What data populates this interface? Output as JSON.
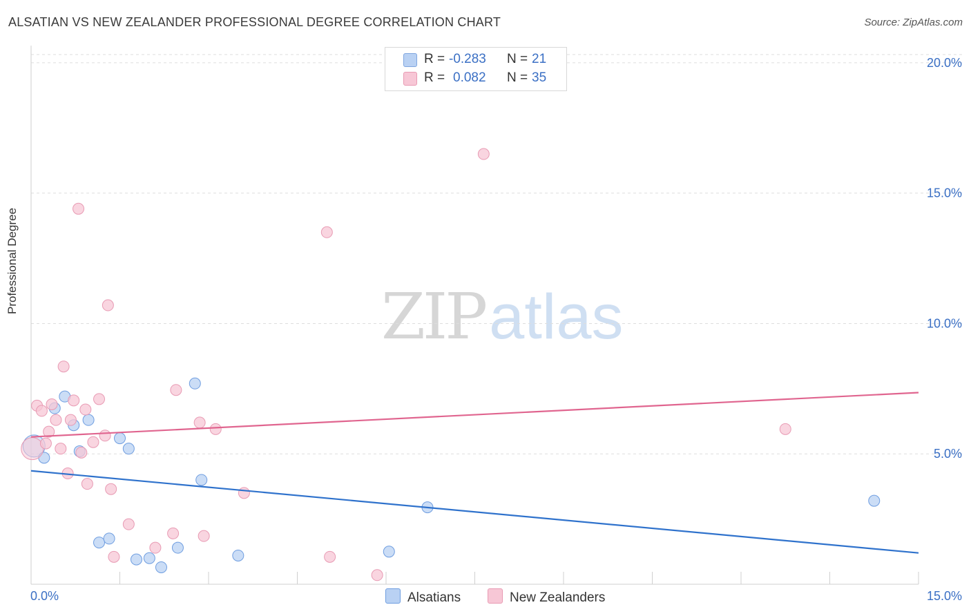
{
  "title": "ALSATIAN VS NEW ZEALANDER PROFESSIONAL DEGREE CORRELATION CHART",
  "source": "Source: ZipAtlas.com",
  "watermark": {
    "zip": "ZIP",
    "atlas": "atlas"
  },
  "legend": {
    "rows": [
      {
        "r_label": "R =",
        "r_value": "-0.283",
        "n_label": "N =",
        "n_value": "21",
        "fill": "#b9d1f3",
        "stroke": "#7ea5df"
      },
      {
        "r_label": "R =",
        "r_value": "0.082",
        "n_label": "N =",
        "n_value": "35",
        "fill": "#f7c7d6",
        "stroke": "#e89ab3"
      }
    ]
  },
  "chart_data": {
    "type": "scatter",
    "title": "ALSATIAN VS NEW ZEALANDER PROFESSIONAL DEGREE CORRELATION CHART",
    "xlabel": "",
    "ylabel": "Professional Degree",
    "xlim": [
      0,
      15
    ],
    "ylim": [
      0,
      20.5
    ],
    "x_tick_labels": [
      "0.0%",
      "15.0%"
    ],
    "y_ticks": [
      5,
      10,
      15,
      20
    ],
    "y_tick_labels": [
      "5.0%",
      "10.0%",
      "15.0%",
      "20.0%"
    ],
    "grid": true,
    "legend_position": "bottom-center",
    "series": [
      {
        "name": "Alsatians",
        "color": "#6e9de0",
        "fill": "#b9d1f3",
        "trend_color": "#2f72cc",
        "trend": {
          "x": [
            0,
            15
          ],
          "y": [
            4.35,
            1.2
          ]
        },
        "points": [
          {
            "x": 0.05,
            "y": 5.3,
            "big": true
          },
          {
            "x": 0.22,
            "y": 4.85
          },
          {
            "x": 0.4,
            "y": 6.75
          },
          {
            "x": 0.57,
            "y": 7.2
          },
          {
            "x": 0.72,
            "y": 6.1
          },
          {
            "x": 0.82,
            "y": 5.1
          },
          {
            "x": 0.97,
            "y": 6.3
          },
          {
            "x": 1.15,
            "y": 1.6
          },
          {
            "x": 1.32,
            "y": 1.75
          },
          {
            "x": 1.5,
            "y": 5.6
          },
          {
            "x": 1.65,
            "y": 5.2
          },
          {
            "x": 1.78,
            "y": 0.95
          },
          {
            "x": 2.0,
            "y": 1.0
          },
          {
            "x": 2.2,
            "y": 0.65
          },
          {
            "x": 2.48,
            "y": 1.4
          },
          {
            "x": 2.77,
            "y": 7.7
          },
          {
            "x": 2.88,
            "y": 4.0
          },
          {
            "x": 3.5,
            "y": 1.1
          },
          {
            "x": 6.05,
            "y": 1.25
          },
          {
            "x": 6.7,
            "y": 2.95
          },
          {
            "x": 14.25,
            "y": 3.2
          }
        ]
      },
      {
        "name": "New Zealanders",
        "color": "#e89ab3",
        "fill": "#f7c7d6",
        "trend_color": "#e0658f",
        "trend": {
          "x": [
            0,
            15
          ],
          "y": [
            5.65,
            7.35
          ]
        },
        "points": [
          {
            "x": 0.02,
            "y": 5.2,
            "big": true
          },
          {
            "x": 0.1,
            "y": 6.85
          },
          {
            "x": 0.18,
            "y": 6.65
          },
          {
            "x": 0.25,
            "y": 5.4
          },
          {
            "x": 0.3,
            "y": 5.85
          },
          {
            "x": 0.35,
            "y": 6.9
          },
          {
            "x": 0.42,
            "y": 6.3
          },
          {
            "x": 0.5,
            "y": 5.2
          },
          {
            "x": 0.55,
            "y": 8.35
          },
          {
            "x": 0.62,
            "y": 4.25
          },
          {
            "x": 0.67,
            "y": 6.3
          },
          {
            "x": 0.72,
            "y": 7.05
          },
          {
            "x": 0.8,
            "y": 14.4
          },
          {
            "x": 0.85,
            "y": 5.05
          },
          {
            "x": 0.92,
            "y": 6.7
          },
          {
            "x": 0.95,
            "y": 3.85
          },
          {
            "x": 1.05,
            "y": 5.45
          },
          {
            "x": 1.15,
            "y": 7.1
          },
          {
            "x": 1.25,
            "y": 5.7
          },
          {
            "x": 1.3,
            "y": 10.7
          },
          {
            "x": 1.35,
            "y": 3.65
          },
          {
            "x": 1.4,
            "y": 1.05
          },
          {
            "x": 1.65,
            "y": 2.3
          },
          {
            "x": 2.1,
            "y": 1.4
          },
          {
            "x": 2.4,
            "y": 1.95
          },
          {
            "x": 2.45,
            "y": 7.45
          },
          {
            "x": 2.85,
            "y": 6.2
          },
          {
            "x": 2.92,
            "y": 1.85
          },
          {
            "x": 3.12,
            "y": 5.95
          },
          {
            "x": 3.6,
            "y": 3.5
          },
          {
            "x": 5.0,
            "y": 13.5
          },
          {
            "x": 5.05,
            "y": 1.05
          },
          {
            "x": 5.85,
            "y": 0.35
          },
          {
            "x": 7.65,
            "y": 16.5
          },
          {
            "x": 12.75,
            "y": 5.95
          }
        ]
      }
    ]
  }
}
